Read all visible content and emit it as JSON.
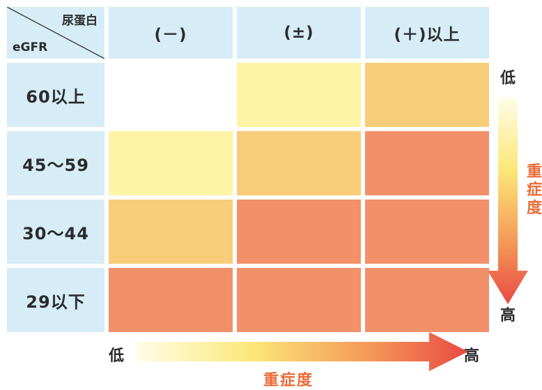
{
  "corner": {
    "protein_label": "尿蛋白",
    "egfr_label": "eGFR"
  },
  "columns": [
    "(－)",
    "(±)",
    "(＋)以上"
  ],
  "rows": [
    {
      "label": "60以上",
      "levels": [
        0,
        1,
        2
      ]
    },
    {
      "label": "45～59",
      "levels": [
        1,
        2,
        3
      ]
    },
    {
      "label": "30～44",
      "levels": [
        2,
        3,
        3
      ]
    },
    {
      "label": "29以下",
      "levels": [
        3,
        3,
        3
      ]
    }
  ],
  "level_colors": [
    "#ffffff",
    "#fdf4a6",
    "#f9cc79",
    "#f2906a"
  ],
  "header_color": "#d6ecf6",
  "severity": {
    "low": "低",
    "high": "高",
    "label": "重症度"
  },
  "arrow_gradient": [
    "#fffde8",
    "#fce777",
    "#f49858",
    "#e84a43"
  ]
}
